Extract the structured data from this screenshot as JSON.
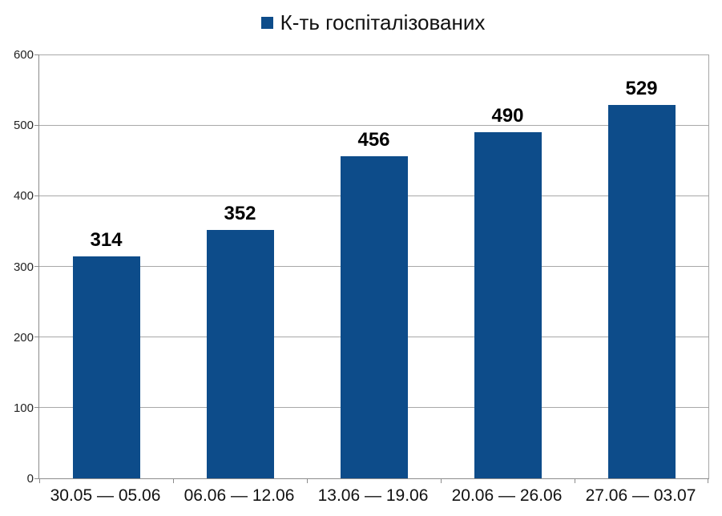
{
  "legend": {
    "label": "К-ть госпіталізованих",
    "marker_color": "#0d4c8a"
  },
  "chart_data": {
    "type": "bar",
    "title": "",
    "series_name": "К-ть госпіталізованих",
    "categories": [
      "30.05 — 05.06",
      "06.06 — 12.06",
      "13.06 — 19.06",
      "20.06 — 26.06",
      "27.06 — 03.07"
    ],
    "values": [
      314,
      352,
      456,
      490,
      529
    ],
    "data_labels": [
      "314",
      "352",
      "456",
      "490",
      "529"
    ],
    "xlabel": "",
    "ylabel": "",
    "ylim": [
      0,
      600
    ],
    "ytick_step": 100,
    "ytick_labels": [
      "0",
      "100",
      "200",
      "300",
      "400",
      "500",
      "600"
    ],
    "bar_color": "#0d4c8a",
    "grid": "horizontal",
    "gridline_color": "#a8a8a8",
    "legend_position": "top-center"
  }
}
